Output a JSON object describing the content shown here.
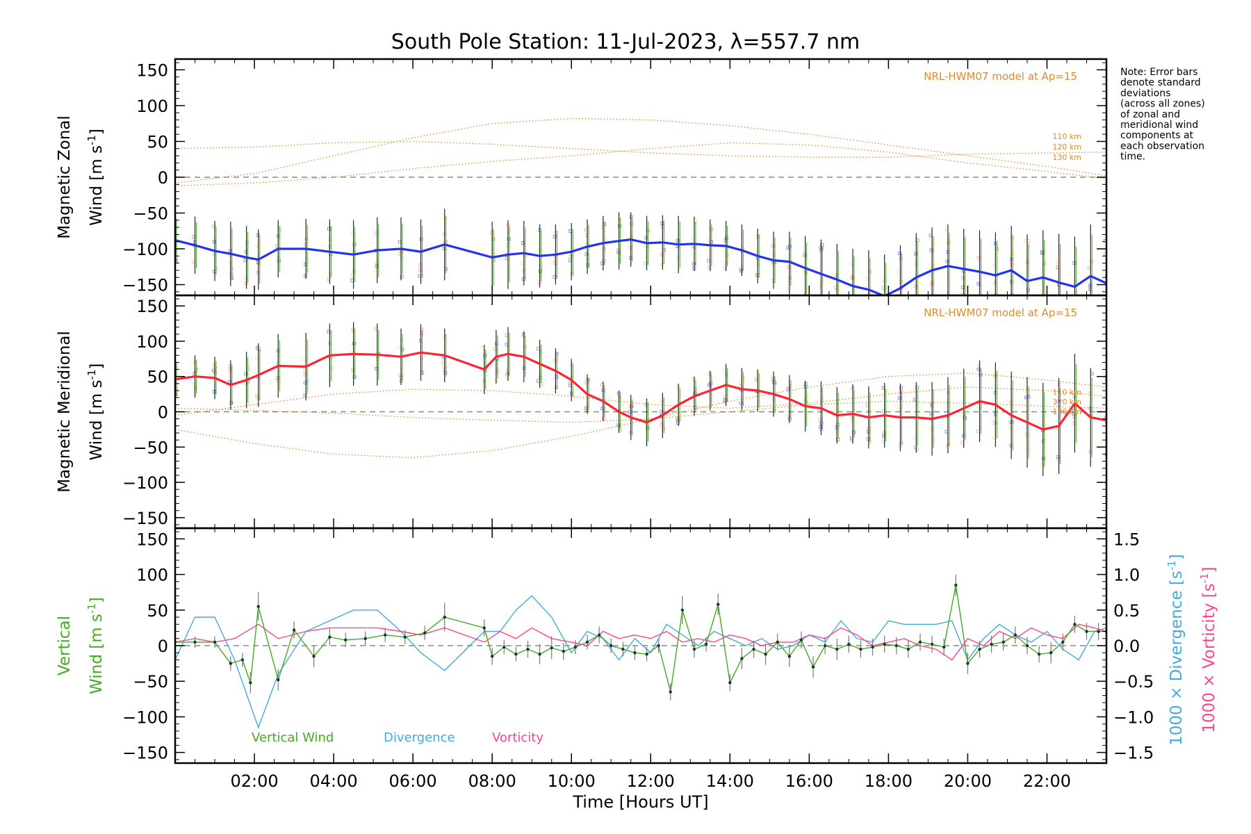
{
  "title": "South Pole Station: 11-Jul-2023, λ=557.7 nm",
  "note_lines": [
    "Note: Error bars",
    "denote standard",
    "deviations",
    "(across all zones)",
    "of zonal and",
    "meridional wind",
    "components at",
    "each observation",
    "time."
  ],
  "colors": {
    "zonal": "#2233ee",
    "meridional": "#ff2233",
    "vertical": "#44aa22",
    "divergence": "#44aadd",
    "vorticity": "#ff4488",
    "model": "#e08a2e",
    "scatter_zonal": "#8888dd",
    "scatter_meridional": "#8888dd",
    "errorbar": "#222222"
  },
  "chart_data": [
    {
      "panel": "zonal",
      "type": "line",
      "ylabel_line1": "Magnetic Zonal",
      "ylabel_line2_prefix": "Wind ",
      "ylabel_units": "[m s",
      "ylabel_sup": "-1",
      "ylabel_close": "]",
      "ylim": [
        -165,
        165
      ],
      "yticks": [
        150,
        100,
        50,
        0,
        -50,
        -100,
        -150
      ],
      "model_label": "NRL-HWM07 model at Ap=15",
      "model_alt_labels": [
        "110 km",
        "120 km",
        "130 km"
      ],
      "model_curves": [
        {
          "name": "110 km",
          "x": [
            0,
            2,
            4,
            6,
            8,
            10,
            12,
            14,
            16,
            18,
            20,
            22,
            23.5
          ],
          "y": [
            40,
            42,
            48,
            50,
            46,
            40,
            34,
            30,
            28,
            28,
            32,
            34,
            35
          ]
        },
        {
          "name": "120 km",
          "x": [
            0,
            2,
            4,
            6,
            8,
            10,
            12,
            14,
            16,
            18,
            20,
            22,
            23.5
          ],
          "y": [
            -8,
            5,
            30,
            55,
            75,
            82,
            80,
            72,
            60,
            45,
            30,
            15,
            2
          ]
        },
        {
          "name": "130 km",
          "x": [
            0,
            2,
            4,
            6,
            8,
            10,
            12,
            14,
            16,
            18,
            20,
            22,
            23.5
          ],
          "y": [
            -12,
            -8,
            0,
            12,
            22,
            30,
            40,
            48,
            45,
            35,
            20,
            8,
            -2
          ]
        }
      ],
      "series": {
        "x": [
          0,
          0.5,
          1,
          1.4,
          1.8,
          2.1,
          2.6,
          3.3,
          3.9,
          4.5,
          5.1,
          5.7,
          6.2,
          6.8,
          8,
          8.4,
          8.8,
          9.2,
          9.6,
          10,
          10.4,
          10.8,
          11.2,
          11.5,
          11.9,
          12.3,
          12.7,
          13.1,
          13.5,
          13.9,
          14.3,
          14.7,
          15.1,
          15.5,
          15.9,
          16.3,
          16.7,
          17.1,
          17.5,
          17.9,
          18.3,
          18.7,
          19.1,
          19.5,
          19.9,
          20.3,
          20.7,
          21.1,
          21.5,
          21.9,
          22.3,
          22.7,
          23.1,
          23.5
        ],
        "y": [
          -88,
          -95,
          -103,
          -107,
          -112,
          -115,
          -100,
          -100,
          -104,
          -108,
          -102,
          -100,
          -104,
          -94,
          -112,
          -108,
          -106,
          -110,
          -108,
          -104,
          -97,
          -92,
          -89,
          -87,
          -92,
          -91,
          -94,
          -93,
          -95,
          -96,
          -102,
          -110,
          -116,
          -118,
          -127,
          -135,
          -143,
          -152,
          -157,
          -166,
          -155,
          -140,
          -130,
          -124,
          -128,
          -132,
          -137,
          -130,
          -145,
          -140,
          -147,
          -153,
          -138,
          -148
        ],
        "err": [
          38,
          40,
          42,
          45,
          44,
          42,
          40,
          42,
          45,
          48,
          46,
          44,
          45,
          50,
          50,
          48,
          45,
          44,
          42,
          40,
          38,
          38,
          40,
          38,
          38,
          38,
          40,
          38,
          36,
          35,
          36,
          38,
          40,
          42,
          45,
          48,
          50,
          52,
          55,
          58,
          60,
          62,
          60,
          58,
          56,
          58,
          60,
          62,
          65,
          66,
          68,
          70,
          72,
          70
        ]
      }
    },
    {
      "panel": "meridional",
      "type": "line",
      "ylabel_line1": "Magnetic Meridional",
      "ylabel_line2_prefix": "Wind ",
      "ylabel_units": "[m s",
      "ylabel_sup": "-1",
      "ylabel_close": "]",
      "ylim": [
        -165,
        165
      ],
      "yticks": [
        150,
        100,
        50,
        0,
        -50,
        -100,
        -150
      ],
      "model_label": "NRL-HWM07 model at Ap=15",
      "model_alt_labels": [
        "110 km",
        "120 km",
        "130 km"
      ],
      "model_curves": [
        {
          "name": "110 km",
          "x": [
            0,
            2,
            4,
            6,
            8,
            10,
            12,
            14,
            16,
            18,
            20,
            22,
            23.5
          ],
          "y": [
            -25,
            -45,
            -60,
            -65,
            -55,
            -35,
            -10,
            15,
            35,
            50,
            55,
            45,
            35
          ]
        },
        {
          "name": "120 km",
          "x": [
            0,
            2,
            4,
            6,
            8,
            10,
            12,
            14,
            16,
            18,
            20,
            22,
            23.5
          ],
          "y": [
            -5,
            10,
            25,
            32,
            30,
            22,
            10,
            5,
            12,
            25,
            35,
            30,
            22
          ]
        },
        {
          "name": "130 km",
          "x": [
            0,
            2,
            4,
            6,
            8,
            10,
            12,
            14,
            16,
            18,
            20,
            22,
            23.5
          ],
          "y": [
            5,
            2,
            -2,
            -8,
            -12,
            -15,
            -10,
            0,
            10,
            15,
            12,
            8,
            5
          ]
        }
      ],
      "series": {
        "x": [
          0,
          0.5,
          1,
          1.4,
          1.8,
          2.1,
          2.6,
          3.3,
          3.9,
          4.5,
          5.1,
          5.7,
          6.2,
          6.8,
          7.8,
          8.1,
          8.4,
          8.8,
          9.2,
          9.6,
          10,
          10.4,
          10.8,
          11.2,
          11.5,
          11.9,
          12.3,
          12.7,
          13.1,
          13.5,
          13.9,
          14.3,
          14.7,
          15.1,
          15.5,
          15.9,
          16.3,
          16.7,
          17.1,
          17.5,
          17.9,
          18.3,
          18.7,
          19.1,
          19.5,
          19.9,
          20.3,
          20.7,
          21.1,
          21.5,
          21.9,
          22.3,
          22.7,
          23.1,
          23.5
        ],
        "y": [
          46,
          50,
          48,
          38,
          45,
          52,
          65,
          64,
          80,
          82,
          81,
          78,
          84,
          80,
          60,
          78,
          82,
          78,
          68,
          58,
          45,
          25,
          15,
          0,
          -8,
          -15,
          -5,
          10,
          22,
          30,
          38,
          32,
          30,
          25,
          18,
          8,
          5,
          -5,
          -3,
          -8,
          -5,
          -8,
          -8,
          -10,
          -5,
          5,
          15,
          10,
          -5,
          -15,
          -25,
          -20,
          12,
          -8,
          -12
        ],
        "err": [
          30,
          30,
          30,
          35,
          40,
          45,
          45,
          48,
          45,
          45,
          44,
          40,
          40,
          38,
          35,
          38,
          38,
          36,
          34,
          32,
          30,
          28,
          28,
          30,
          32,
          34,
          32,
          30,
          28,
          28,
          30,
          30,
          30,
          32,
          34,
          36,
          38,
          40,
          42,
          44,
          46,
          48,
          50,
          52,
          54,
          56,
          58,
          60,
          62,
          64,
          66,
          68,
          70,
          70,
          70
        ]
      }
    },
    {
      "panel": "vertical",
      "type": "line",
      "ylabel_left_line1": "Vertical",
      "ylabel_left_line2_prefix": "Wind ",
      "ylabel_units": "[m s",
      "ylabel_sup": "-1",
      "ylabel_close": "]",
      "ylabel_right1": "1000 × Divergence [s",
      "ylabel_right2": "1000 × Vorticity [s",
      "ylim": [
        -165,
        165
      ],
      "yticks": [
        150,
        100,
        50,
        0,
        -50,
        -100,
        -150
      ],
      "y2lim": [
        -1.65,
        1.65
      ],
      "y2ticks": [
        "1.5",
        "1.0",
        "0.5",
        "0.0",
        "−0.5",
        "−1.0",
        "−1.5"
      ],
      "y2tick_values": [
        1.5,
        1.0,
        0.5,
        0.0,
        -0.5,
        -1.0,
        -1.5
      ],
      "legend": [
        "Vertical Wind",
        "Divergence",
        "Vorticity"
      ],
      "vertical_wind": {
        "x": [
          0,
          0.5,
          1.0,
          1.4,
          1.7,
          1.9,
          2.1,
          2.6,
          3.0,
          3.5,
          3.9,
          4.3,
          4.8,
          5.3,
          5.8,
          6.3,
          6.8,
          7.8,
          8.0,
          8.3,
          8.6,
          8.9,
          9.2,
          9.5,
          9.8,
          10.1,
          10.4,
          10.7,
          11.0,
          11.3,
          11.6,
          11.9,
          12.2,
          12.5,
          12.8,
          13.1,
          13.4,
          13.7,
          14.0,
          14.3,
          14.6,
          14.9,
          15.2,
          15.5,
          15.8,
          16.1,
          16.4,
          16.7,
          17.0,
          17.3,
          17.6,
          17.9,
          18.2,
          18.5,
          18.8,
          19.1,
          19.4,
          19.7,
          20.0,
          20.3,
          20.6,
          20.9,
          21.2,
          21.5,
          21.8,
          22.1,
          22.4,
          22.7,
          23.0,
          23.3,
          23.5
        ],
        "y": [
          5,
          5,
          5,
          -25,
          -20,
          -52,
          55,
          -48,
          22,
          -15,
          12,
          8,
          10,
          15,
          12,
          18,
          40,
          25,
          -15,
          -2,
          -12,
          -5,
          -12,
          -3,
          -8,
          -2,
          5,
          15,
          0,
          -5,
          -10,
          -12,
          0,
          -65,
          50,
          -5,
          2,
          58,
          -52,
          -18,
          -5,
          -12,
          5,
          -15,
          8,
          -30,
          0,
          -5,
          2,
          -5,
          -2,
          2,
          0,
          -5,
          5,
          2,
          -2,
          85,
          -25,
          -5,
          2,
          5,
          15,
          0,
          -12,
          -10,
          5,
          30,
          20,
          20,
          20
        ],
        "err": [
          8,
          8,
          8,
          10,
          10,
          15,
          20,
          15,
          12,
          15,
          12,
          10,
          10,
          10,
          10,
          10,
          20,
          12,
          12,
          10,
          10,
          12,
          14,
          16,
          12,
          10,
          10,
          12,
          10,
          10,
          10,
          10,
          10,
          12,
          20,
          12,
          10,
          15,
          12,
          15,
          12,
          15,
          12,
          15,
          12,
          15,
          12,
          15,
          12,
          12,
          12,
          12,
          12,
          12,
          12,
          12,
          12,
          15,
          15,
          12,
          12,
          12,
          12,
          12,
          12,
          15,
          12,
          12,
          12,
          12,
          12
        ]
      },
      "divergence": {
        "x": [
          0,
          0.5,
          1.0,
          1.5,
          2.1,
          2.6,
          3.3,
          3.9,
          4.5,
          5.1,
          5.7,
          6.2,
          6.8,
          7.8,
          8.2,
          8.6,
          9.0,
          9.5,
          10.0,
          10.4,
          10.8,
          11.2,
          11.6,
          12.0,
          12.4,
          12.8,
          13.2,
          13.6,
          14.0,
          14.4,
          14.8,
          15.2,
          15.6,
          16.0,
          16.4,
          16.8,
          17.2,
          17.6,
          18.0,
          18.4,
          18.8,
          19.2,
          19.6,
          20.0,
          20.4,
          20.8,
          21.2,
          21.6,
          22.0,
          22.4,
          22.8,
          23.2,
          23.5
        ],
        "y": [
          -0.2,
          0.4,
          0.4,
          -0.2,
          -1.15,
          -0.4,
          0.2,
          0.35,
          0.5,
          0.5,
          0.2,
          -0.1,
          -0.35,
          0.2,
          0.2,
          0.5,
          0.7,
          0.4,
          -0.1,
          0.2,
          0.1,
          -0.2,
          0.1,
          -0.1,
          0.3,
          0.15,
          0.0,
          0.2,
          0.1,
          0.0,
          0.1,
          -0.05,
          0.0,
          0.15,
          0.05,
          0.35,
          0.1,
          0.05,
          0.35,
          0.3,
          0.3,
          0.3,
          0.35,
          -0.2,
          0.1,
          0.3,
          0.15,
          0.05,
          0.2,
          -0.05,
          -0.2,
          0.2,
          0.25
        ]
      },
      "vorticity": {
        "x": [
          0,
          0.5,
          1.0,
          1.5,
          2.1,
          2.6,
          3.3,
          3.9,
          4.5,
          5.1,
          5.7,
          6.2,
          6.8,
          7.8,
          8.2,
          8.6,
          9.0,
          9.5,
          10.0,
          10.4,
          10.8,
          11.2,
          11.6,
          12.0,
          12.4,
          12.8,
          13.2,
          13.6,
          14.0,
          14.4,
          14.8,
          15.2,
          15.6,
          16.0,
          16.4,
          16.8,
          17.2,
          17.6,
          18.0,
          18.4,
          18.8,
          19.2,
          19.6,
          20.0,
          20.4,
          20.8,
          21.2,
          21.6,
          22.0,
          22.4,
          22.8,
          23.2,
          23.5
        ],
        "y": [
          0.05,
          0.1,
          0.05,
          0.1,
          0.3,
          0.1,
          0.2,
          0.25,
          0.25,
          0.25,
          0.2,
          0.15,
          0.25,
          0.05,
          0.2,
          0.1,
          0.25,
          0.1,
          0.05,
          0.0,
          0.2,
          0.1,
          0.15,
          0.1,
          0.2,
          0.05,
          0.1,
          0.05,
          0.15,
          0.1,
          0.0,
          0.05,
          0.05,
          0.15,
          0.1,
          0.25,
          0.15,
          0.0,
          0.05,
          0.1,
          0.0,
          -0.05,
          -0.2,
          0.1,
          0.0,
          0.2,
          0.1,
          0.25,
          0.15,
          0.1,
          0.3,
          0.25,
          0.2
        ]
      }
    }
  ],
  "xaxis": {
    "label": "Time [Hours UT]",
    "xlim": [
      0,
      23.5
    ],
    "ticks": [
      2,
      4,
      6,
      8,
      10,
      12,
      14,
      16,
      18,
      20,
      22
    ],
    "tick_labels": [
      "02:00",
      "04:00",
      "06:00",
      "08:00",
      "10:00",
      "12:00",
      "14:00",
      "16:00",
      "18:00",
      "20:00",
      "22:00"
    ]
  }
}
